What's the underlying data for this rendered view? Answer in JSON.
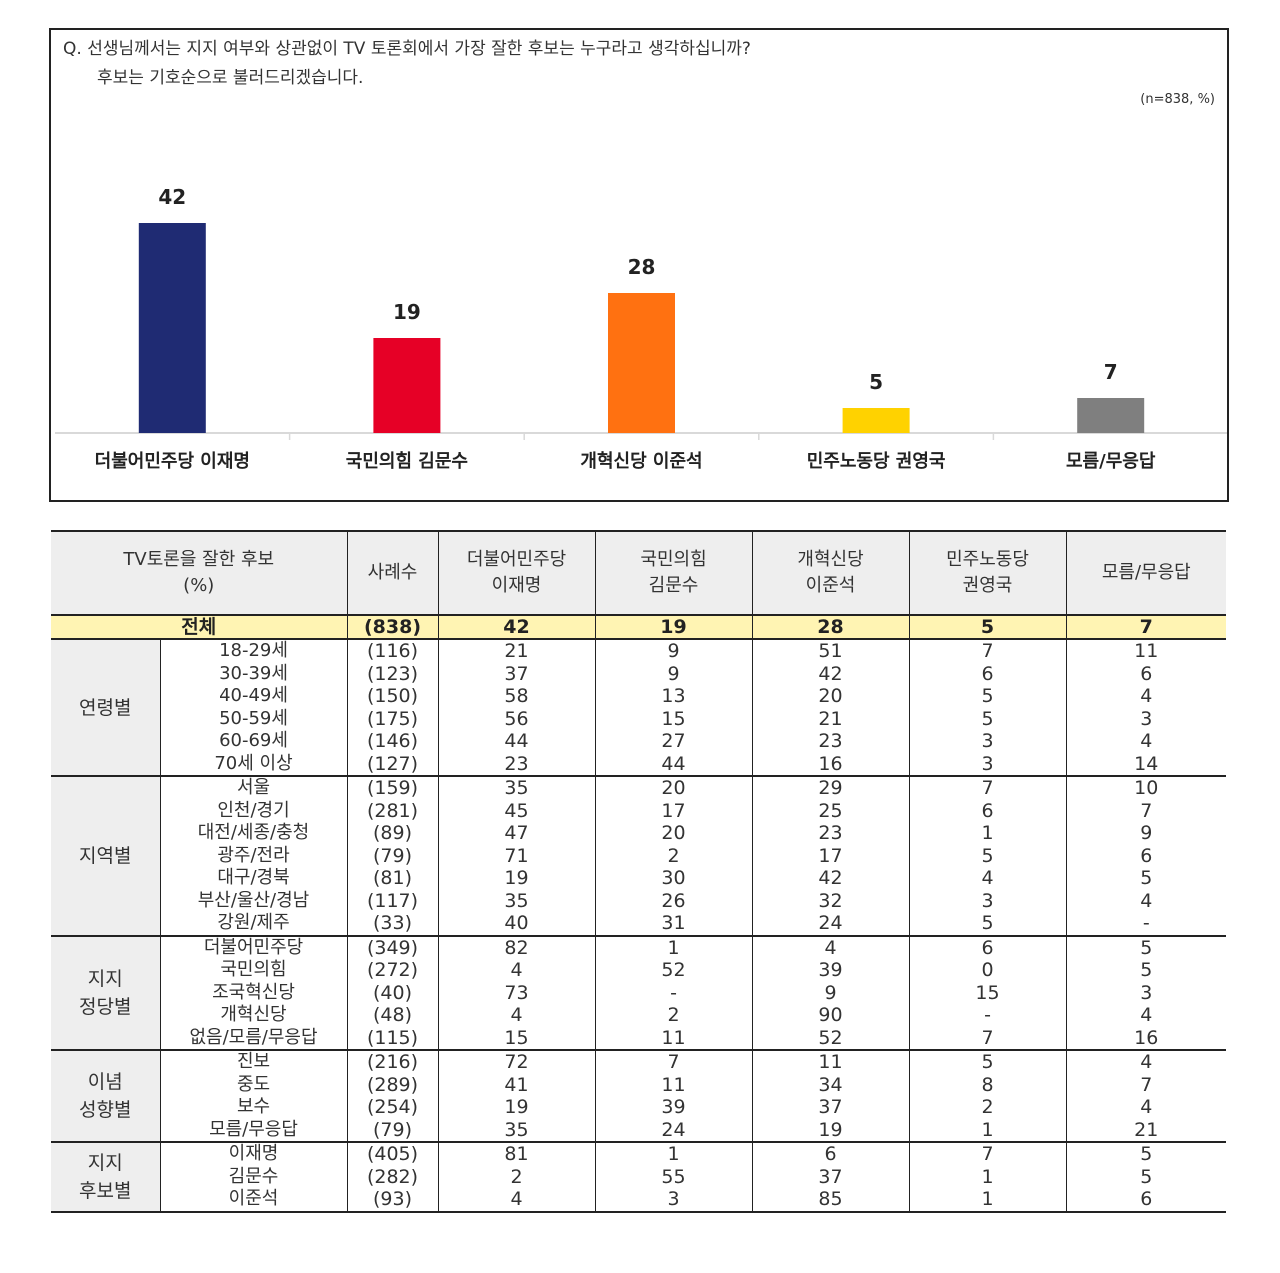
{
  "question": {
    "line1": "Q. 선생님께서는 지지 여부와 상관없이 TV 토론회에서 가장 잘한 후보는 누구라고 생각하십니까?",
    "line2": "후보는 기호순으로 불러드리겠습니다.",
    "sample_note": "(n=838, %)"
  },
  "chart_data": {
    "type": "bar",
    "categories": [
      "더불어민주당 이재명",
      "국민의힘 김문수",
      "개혁신당 이준석",
      "민주노동당 권영국",
      "모름/무응답"
    ],
    "values": [
      42,
      19,
      28,
      5,
      7
    ],
    "colors": [
      "#1f2b73",
      "#e60026",
      "#ff7111",
      "#ffd200",
      "#7f7f7f"
    ],
    "title": "",
    "xlabel": "",
    "ylabel": "",
    "ylim": [
      0,
      50
    ],
    "grid": false,
    "legend": "none"
  },
  "table": {
    "header": {
      "label": "TV토론을 잘한 후보",
      "unit": "(%)",
      "sample": "사례수",
      "cols": [
        [
          "더불어민주당",
          "이재명"
        ],
        [
          "국민의힘",
          "김문수"
        ],
        [
          "개혁신당",
          "이준석"
        ],
        [
          "민주노동당",
          "권영국"
        ],
        [
          "모름/무응답"
        ]
      ]
    },
    "total": {
      "label": "전체",
      "n": "(838)",
      "vals": [
        "42",
        "19",
        "28",
        "5",
        "7"
      ]
    },
    "groups": [
      {
        "name": [
          "연령별"
        ],
        "rows": [
          {
            "label": "18-29세",
            "n": "(116)",
            "vals": [
              "21",
              "9",
              "51",
              "7",
              "11"
            ]
          },
          {
            "label": "30-39세",
            "n": "(123)",
            "vals": [
              "37",
              "9",
              "42",
              "6",
              "6"
            ]
          },
          {
            "label": "40-49세",
            "n": "(150)",
            "vals": [
              "58",
              "13",
              "20",
              "5",
              "4"
            ]
          },
          {
            "label": "50-59세",
            "n": "(175)",
            "vals": [
              "56",
              "15",
              "21",
              "5",
              "3"
            ]
          },
          {
            "label": "60-69세",
            "n": "(146)",
            "vals": [
              "44",
              "27",
              "23",
              "3",
              "4"
            ]
          },
          {
            "label": "70세 이상",
            "n": "(127)",
            "vals": [
              "23",
              "44",
              "16",
              "3",
              "14"
            ]
          }
        ]
      },
      {
        "name": [
          "지역별"
        ],
        "rows": [
          {
            "label": "서울",
            "n": "(159)",
            "vals": [
              "35",
              "20",
              "29",
              "7",
              "10"
            ]
          },
          {
            "label": "인천/경기",
            "n": "(281)",
            "vals": [
              "45",
              "17",
              "25",
              "6",
              "7"
            ]
          },
          {
            "label": "대전/세종/충청",
            "n": "(89)",
            "vals": [
              "47",
              "20",
              "23",
              "1",
              "9"
            ]
          },
          {
            "label": "광주/전라",
            "n": "(79)",
            "vals": [
              "71",
              "2",
              "17",
              "5",
              "6"
            ]
          },
          {
            "label": "대구/경북",
            "n": "(81)",
            "vals": [
              "19",
              "30",
              "42",
              "4",
              "5"
            ]
          },
          {
            "label": "부산/울산/경남",
            "n": "(117)",
            "vals": [
              "35",
              "26",
              "32",
              "3",
              "4"
            ]
          },
          {
            "label": "강원/제주",
            "n": "(33)",
            "vals": [
              "40",
              "31",
              "24",
              "5",
              "-"
            ]
          }
        ]
      },
      {
        "name": [
          "지지",
          "정당별"
        ],
        "rows": [
          {
            "label": "더불어민주당",
            "n": "(349)",
            "vals": [
              "82",
              "1",
              "4",
              "6",
              "5"
            ]
          },
          {
            "label": "국민의힘",
            "n": "(272)",
            "vals": [
              "4",
              "52",
              "39",
              "0",
              "5"
            ]
          },
          {
            "label": "조국혁신당",
            "n": "(40)",
            "vals": [
              "73",
              "-",
              "9",
              "15",
              "3"
            ]
          },
          {
            "label": "개혁신당",
            "n": "(48)",
            "vals": [
              "4",
              "2",
              "90",
              "-",
              "4"
            ]
          },
          {
            "label": "없음/모름/무응답",
            "n": "(115)",
            "vals": [
              "15",
              "11",
              "52",
              "7",
              "16"
            ]
          }
        ]
      },
      {
        "name": [
          "이념",
          "성향별"
        ],
        "rows": [
          {
            "label": "진보",
            "n": "(216)",
            "vals": [
              "72",
              "7",
              "11",
              "5",
              "4"
            ]
          },
          {
            "label": "중도",
            "n": "(289)",
            "vals": [
              "41",
              "11",
              "34",
              "8",
              "7"
            ]
          },
          {
            "label": "보수",
            "n": "(254)",
            "vals": [
              "19",
              "39",
              "37",
              "2",
              "4"
            ]
          },
          {
            "label": "모름/무응답",
            "n": "(79)",
            "vals": [
              "35",
              "24",
              "19",
              "1",
              "21"
            ]
          }
        ]
      },
      {
        "name": [
          "지지",
          "후보별"
        ],
        "rows": [
          {
            "label": "이재명",
            "n": "(405)",
            "vals": [
              "81",
              "1",
              "6",
              "7",
              "5"
            ]
          },
          {
            "label": "김문수",
            "n": "(282)",
            "vals": [
              "2",
              "55",
              "37",
              "1",
              "5"
            ]
          },
          {
            "label": "이준석",
            "n": "(93)",
            "vals": [
              "4",
              "3",
              "85",
              "1",
              "6"
            ]
          }
        ]
      }
    ]
  }
}
